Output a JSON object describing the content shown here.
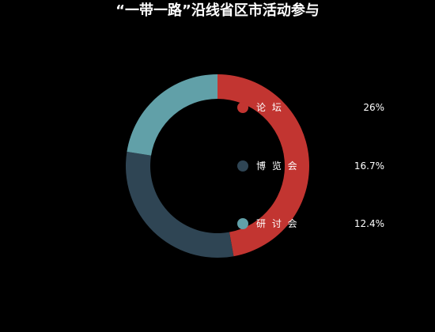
{
  "chart_data": {
    "type": "pie",
    "title": "“一带一路”沿线省区市活动参与",
    "values": [
      26,
      16.7,
      12.4
    ],
    "value_labels": [
      "26%",
      "16.7%",
      "12.4%"
    ],
    "categories": [
      "论坛",
      "博览会",
      "研讨会"
    ],
    "category_labels": [
      "论 坛",
      "博 览 会",
      "研 讨 会"
    ],
    "colors": [
      "#c23531",
      "#2f4554",
      "#61a0a8"
    ],
    "donut": true,
    "legend_position": "right"
  }
}
